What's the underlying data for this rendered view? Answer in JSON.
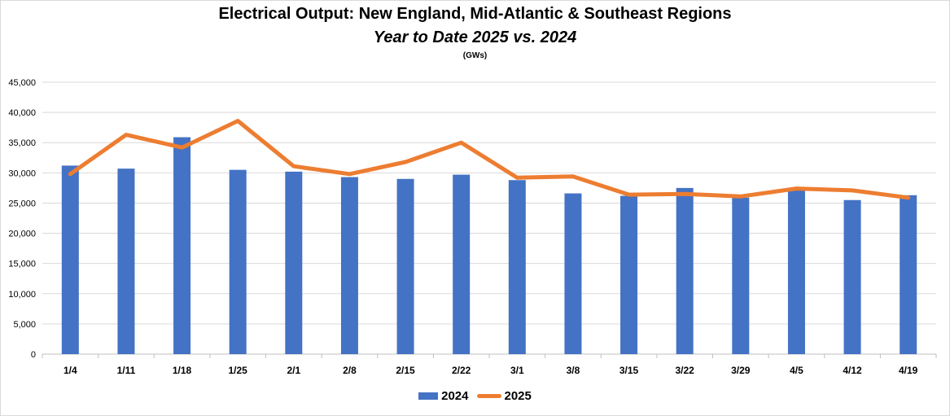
{
  "chart_data": {
    "type": "bar",
    "title": "Electrical Output:  New England, Mid-Atlantic & Southeast Regions",
    "subtitle": "Year to Date 2025 vs. 2024",
    "unit_note": "(GWs)",
    "categories": [
      "1/4",
      "1/11",
      "1/18",
      "1/25",
      "2/1",
      "2/8",
      "2/15",
      "2/22",
      "3/1",
      "3/8",
      "3/15",
      "3/22",
      "3/29",
      "4/5",
      "4/12",
      "4/19"
    ],
    "series": [
      {
        "name": "2024",
        "type": "bar",
        "color": "#4472C4",
        "values": [
          31200,
          30700,
          35900,
          30500,
          30200,
          29300,
          29000,
          29700,
          28800,
          26600,
          26200,
          27500,
          25900,
          27100,
          25500,
          26300
        ]
      },
      {
        "name": "2025",
        "type": "line",
        "color": "#ED7D31",
        "values": [
          29800,
          36300,
          34200,
          38600,
          31100,
          29800,
          31800,
          35000,
          29200,
          29400,
          26400,
          26500,
          26100,
          27400,
          27100,
          25900
        ]
      }
    ],
    "ylim": [
      0,
      45000
    ],
    "yticks": [
      0,
      5000,
      10000,
      15000,
      20000,
      25000,
      30000,
      35000,
      40000,
      45000
    ],
    "ytick_labels": [
      "0",
      "5,000",
      "10,000",
      "15,000",
      "20,000",
      "25,000",
      "30,000",
      "35,000",
      "40,000",
      "45,000"
    ],
    "grid": true,
    "legend_position": "bottom"
  }
}
